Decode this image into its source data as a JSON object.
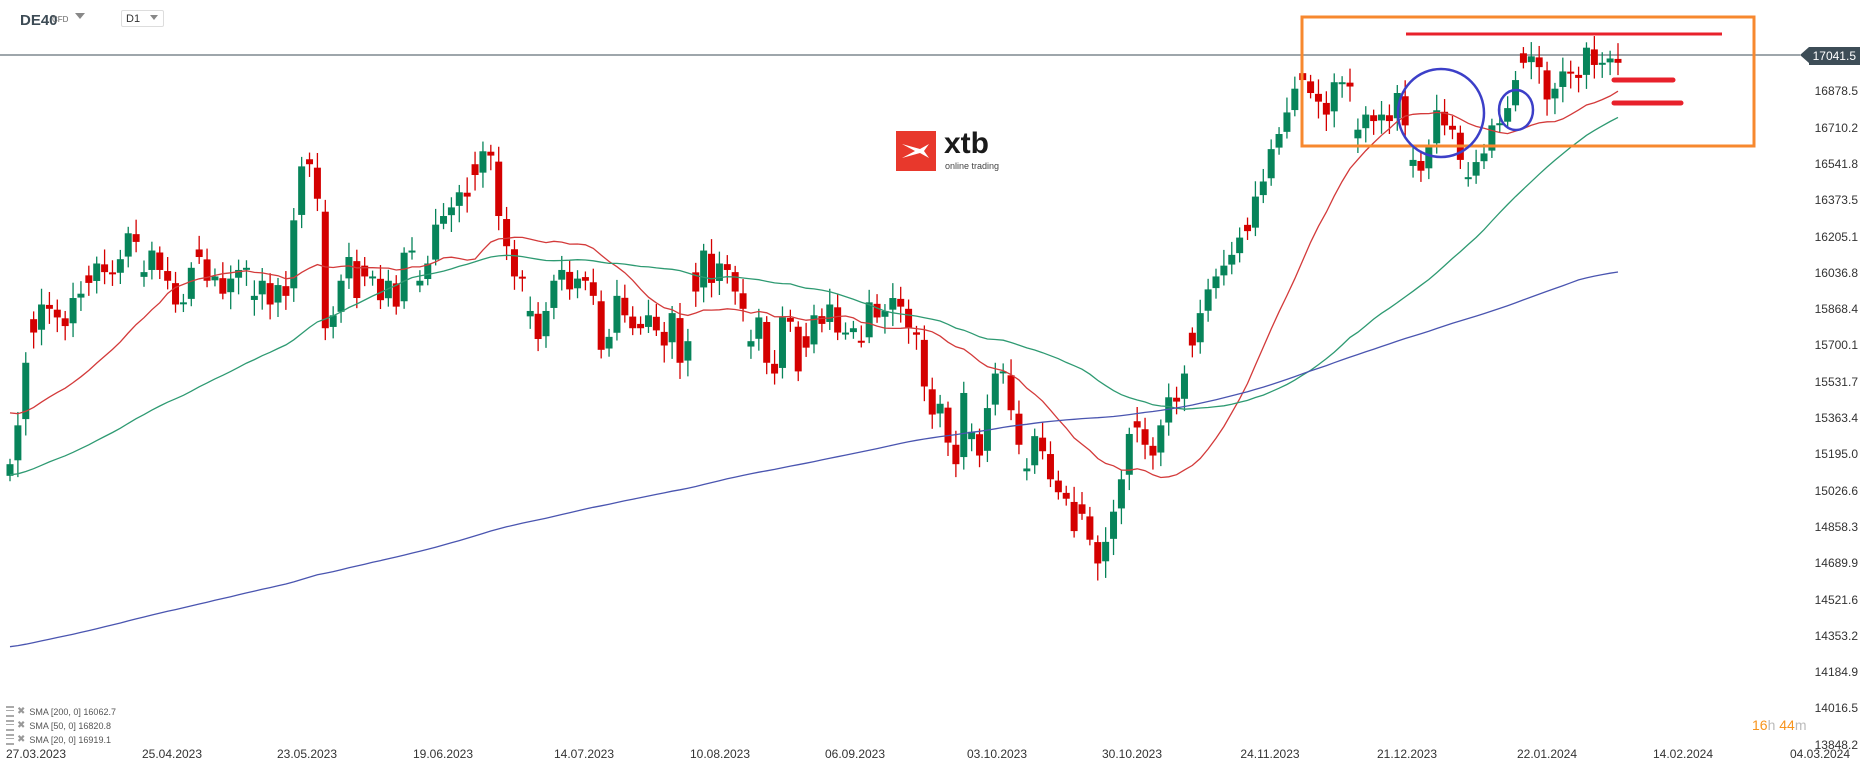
{
  "header": {
    "symbol": "DE40",
    "instrument_type": "CFD",
    "timeframe": "D1"
  },
  "logo": {
    "brand": "xtb",
    "tagline": "online trading"
  },
  "current_price": "17041.5",
  "countdown": {
    "hours": "16",
    "h_unit": "h",
    "minutes": "44",
    "m_unit": "m"
  },
  "legend": [
    {
      "label": "SMA [200, 0] 16062.7"
    },
    {
      "label": "SMA [50, 0] 16820.8"
    },
    {
      "label": "SMA [20, 0] 16919.1"
    }
  ],
  "colors": {
    "bull": "#07845a",
    "bear": "#d40000",
    "sma20": "#d33a3a",
    "sma50": "#2e9a72",
    "sma200": "#4a55b0",
    "annotation_box": "#f7882f",
    "annotation_lines": "#e8212b",
    "annotation_circles": "#3c3fc8",
    "price_line": "#3d4d57"
  },
  "chart_data": {
    "type": "candlestick",
    "title": "DE40 CFD D1",
    "xlabel": "",
    "ylabel": "",
    "ylim": [
      13848.2,
      17041.5
    ],
    "grid": false,
    "y_ticks": [
      "17041.5",
      "16878.5",
      "16710.2",
      "16541.8",
      "16373.5",
      "16205.1",
      "16036.8",
      "15868.4",
      "15700.1",
      "15531.7",
      "15363.4",
      "15195.0",
      "15026.6",
      "14858.3",
      "14689.9",
      "14521.6",
      "14353.2",
      "14184.9",
      "14016.5",
      "13848.2"
    ],
    "x_ticks": [
      "27.03.2023",
      "25.04.2023",
      "23.05.2023",
      "19.06.2023",
      "14.07.2023",
      "10.08.2023",
      "06.09.2023",
      "03.10.2023",
      "30.10.2023",
      "24.11.2023",
      "21.12.2023",
      "22.01.2024",
      "14.02.2024",
      "04.03.2024"
    ],
    "legend": [
      "SMA [200, 0] 16062.7",
      "SMA [50, 0] 16820.8",
      "SMA [20, 0] 16919.1"
    ],
    "series": [
      {
        "name": "SMA 20",
        "last": 16919.1
      },
      {
        "name": "SMA 50",
        "last": 16820.8
      },
      {
        "name": "SMA 200",
        "last": 16062.7
      }
    ],
    "closes": [
      15150,
      15330,
      15620,
      15760,
      15890,
      15870,
      15830,
      15790,
      15920,
      15940,
      15990,
      16080,
      16040,
      16030,
      16100,
      16220,
      16180,
      16040,
      16140,
      16050,
      16000,
      15890,
      15900,
      16060,
      16110,
      16000,
      16020,
      15940,
      16010,
      16050,
      16060,
      15930,
      16000,
      15890,
      15980,
      15930,
      16280,
      16530,
      16540,
      16380,
      15780,
      15840,
      16000,
      16110,
      15920,
      16020,
      16020,
      15910,
      16000,
      15880,
      16130,
      16140,
      16000,
      16080,
      16260,
      16300,
      16340,
      16410,
      16390,
      16490,
      16600,
      16580,
      16300,
      16160,
      16020,
      16010,
      15860,
      15730,
      15860,
      16000,
      16050,
      15960,
      16010,
      16000,
      15930,
      15680,
      15740,
      15930,
      15840,
      15780,
      15780,
      15840,
      15770,
      15700,
      15850,
      15620,
      15720,
      15950,
      16140,
      15990,
      16080,
      16050,
      15950,
      15870,
      15720,
      15830,
      15620,
      15570,
      15830,
      15810,
      15580,
      15690,
      15840,
      15800,
      15890,
      15760,
      15760,
      15780,
      15720,
      15900,
      15830,
      15860,
      15920,
      15880,
      15780,
      15750,
      15510,
      15380,
      15430,
      15250,
      15150,
      15480,
      15300,
      15190,
      15410,
      15570,
      15580,
      15400,
      15240,
      15130,
      15280,
      15210,
      15080,
      15020,
      14990,
      14840,
      14920,
      14800,
      14690,
      14790,
      14930,
      15080,
      15290,
      15320,
      15240,
      15190,
      15330,
      15460,
      15440,
      15570,
      15700,
      15850,
      15960,
      16020,
      16070,
      16120,
      16200,
      16230,
      16390,
      16460,
      16610,
      16680,
      16780,
      16890,
      16930,
      16870,
      16830,
      16770,
      16920,
      16920,
      16900,
      16700,
      16770,
      16740,
      16770,
      16740,
      16870,
      16720,
      16560,
      16510,
      16620,
      16790,
      16720,
      16700,
      16560,
      16480,
      16550,
      16590,
      16720,
      16730,
      16800,
      16930,
      17010,
      17040,
      16990,
      16840,
      16890,
      16970,
      16960,
      16940,
      17080,
      17000,
      17010,
      17030,
      17010
    ]
  }
}
